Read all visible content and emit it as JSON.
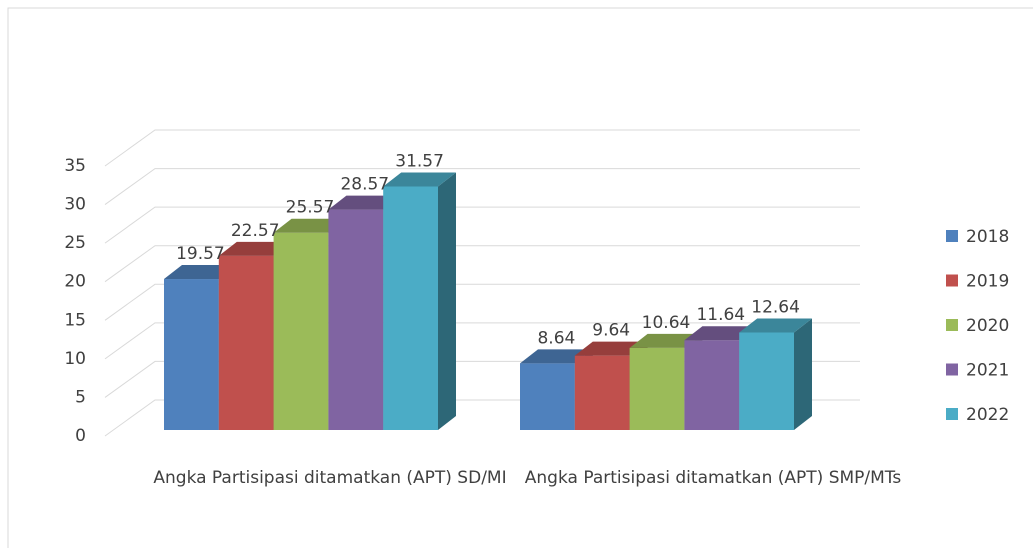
{
  "chart_data": {
    "type": "bar3d",
    "categories": [
      "Angka Partisipasi ditamatkan (APT) SD/MI",
      "Angka Partisipasi ditamatkan (APT) SMP/MTs"
    ],
    "series": [
      {
        "name": "2018",
        "color": "#4f81bd",
        "values": [
          19.57,
          8.64
        ]
      },
      {
        "name": "2019",
        "color": "#c0504d",
        "values": [
          22.57,
          9.64
        ]
      },
      {
        "name": "2020",
        "color": "#9bbb59",
        "values": [
          25.57,
          10.64
        ]
      },
      {
        "name": "2021",
        "color": "#8064a2",
        "values": [
          28.57,
          11.64
        ]
      },
      {
        "name": "2022",
        "color": "#4bacc6",
        "values": [
          31.57,
          12.64
        ]
      }
    ],
    "ylim": [
      0,
      35
    ],
    "yticks": [
      0,
      5,
      10,
      15,
      20,
      25,
      30,
      35
    ],
    "grid": true,
    "legend": "right"
  }
}
